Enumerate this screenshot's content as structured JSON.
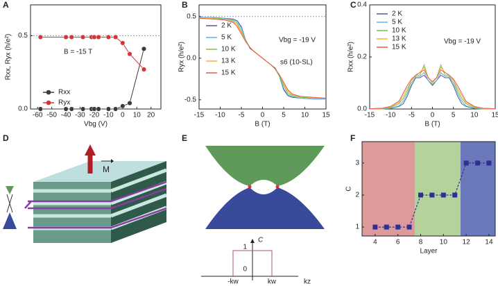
{
  "panel_labels": [
    "A",
    "B",
    "C",
    "D",
    "E",
    "F"
  ],
  "chart_data": [
    {
      "type": "scatter-line",
      "xlabel": "Vbg (V)",
      "ylabel": "Rxx, Ryx (h/e²)",
      "annotations": [
        "B = -15 T"
      ],
      "hline": 0.5,
      "xlim": [
        -65,
        27
      ],
      "ylim": [
        0,
        0.71
      ],
      "xticks": [
        -60,
        -50,
        -40,
        -30,
        -20,
        -10,
        0,
        10,
        20
      ],
      "yticks": [
        {
          "value": 0,
          "label": "0.0"
        },
        {
          "value": 0.5,
          "label": "0.5"
        }
      ],
      "x": [
        -58,
        -40,
        -36,
        -28,
        -22,
        -20,
        -17,
        -10,
        -5,
        0,
        5,
        15
      ],
      "series": [
        {
          "name": "Rxx",
          "color": "#3a3a3a",
          "values": [
            0,
            0,
            0,
            0,
            0,
            0,
            0,
            0,
            0,
            0.02,
            0.04,
            0.41
          ]
        },
        {
          "name": "Ryx",
          "color": "#d8323a",
          "values": [
            0.49,
            0.49,
            0.49,
            0.49,
            0.49,
            0.49,
            0.49,
            0.49,
            0.49,
            0.45,
            0.375,
            0.27
          ]
        }
      ]
    },
    {
      "type": "line",
      "xlabel": "B (T)",
      "ylabel": "Ryx (h/e²)",
      "annotations": [
        "Vbg = -19 V",
        "s6 (10-SL)"
      ],
      "hline": 0.5,
      "xlim": [
        -15,
        15
      ],
      "ylim": [
        -0.61,
        0.64
      ],
      "xticks": [
        -15,
        -10,
        -5,
        0,
        5,
        10,
        15
      ],
      "yticks": [
        -0.5,
        {
          "value": 0,
          "label": "0.0"
        },
        0.5
      ],
      "x": [
        -15,
        -12,
        -9,
        -7,
        -6,
        -5,
        -4,
        -3,
        -2,
        -1,
        0,
        1,
        2,
        3,
        4,
        5,
        6,
        7,
        9,
        12,
        15
      ],
      "series": [
        {
          "name": "2 K",
          "color": "#4a5a9a",
          "values": [
            0.49,
            0.49,
            0.48,
            0.47,
            0.45,
            0.38,
            0.22,
            0.12,
            0.08,
            0.04,
            0,
            -0.04,
            -0.08,
            -0.12,
            -0.22,
            -0.38,
            -0.45,
            -0.47,
            -0.48,
            -0.49,
            -0.49
          ]
        },
        {
          "name": "5 K",
          "color": "#5fb3dc",
          "values": [
            0.49,
            0.49,
            0.48,
            0.46,
            0.44,
            0.36,
            0.22,
            0.13,
            0.08,
            0.04,
            0,
            -0.04,
            -0.08,
            -0.13,
            -0.22,
            -0.36,
            -0.44,
            -0.46,
            -0.48,
            -0.49,
            -0.49
          ]
        },
        {
          "name": "10 K",
          "color": "#7cc04e",
          "values": [
            0.48,
            0.48,
            0.47,
            0.45,
            0.42,
            0.33,
            0.21,
            0.13,
            0.08,
            0.04,
            0,
            -0.04,
            -0.08,
            -0.13,
            -0.21,
            -0.33,
            -0.42,
            -0.45,
            -0.47,
            -0.48,
            -0.48
          ]
        },
        {
          "name": "13 K",
          "color": "#f2b630",
          "values": [
            0.48,
            0.48,
            0.46,
            0.44,
            0.4,
            0.31,
            0.2,
            0.13,
            0.08,
            0.04,
            0,
            -0.04,
            -0.08,
            -0.13,
            -0.2,
            -0.31,
            -0.4,
            -0.44,
            -0.46,
            -0.48,
            -0.48
          ]
        },
        {
          "name": "15 K",
          "color": "#e8554a",
          "values": [
            0.48,
            0.47,
            0.46,
            0.43,
            0.38,
            0.29,
            0.2,
            0.13,
            0.08,
            0.04,
            0,
            -0.04,
            -0.08,
            -0.13,
            -0.2,
            -0.29,
            -0.38,
            -0.43,
            -0.46,
            -0.47,
            -0.48
          ]
        }
      ]
    },
    {
      "type": "line",
      "xlabel": "B (T)",
      "ylabel": "Rxx (h/e²)",
      "annotations": [
        "Vbg = -19 V"
      ],
      "xlim": [
        -15,
        15
      ],
      "ylim": [
        0,
        0.4
      ],
      "xticks": [
        -15,
        -10,
        -5,
        0,
        5,
        10,
        15
      ],
      "yticks": [
        {
          "value": 0,
          "label": "0.0"
        },
        0.2,
        0.4
      ],
      "x": [
        -15,
        -12,
        -10,
        -8,
        -7,
        -6,
        -5,
        -4,
        -3,
        -2,
        -1,
        0,
        1,
        2,
        3,
        4,
        5,
        6,
        7,
        8,
        10,
        12,
        15
      ],
      "series": [
        {
          "name": "2 K",
          "color": "#4a5a9a",
          "values": [
            0,
            0,
            0.002,
            0.01,
            0.02,
            0.05,
            0.09,
            0.12,
            0.12,
            0.13,
            0.11,
            0.09,
            0.11,
            0.13,
            0.12,
            0.12,
            0.09,
            0.05,
            0.02,
            0.01,
            0.002,
            0,
            0
          ]
        },
        {
          "name": "5 K",
          "color": "#5fb3dc",
          "values": [
            0,
            0,
            0.003,
            0.012,
            0.03,
            0.06,
            0.1,
            0.125,
            0.125,
            0.14,
            0.11,
            0.095,
            0.11,
            0.14,
            0.125,
            0.125,
            0.1,
            0.06,
            0.03,
            0.012,
            0.003,
            0,
            0
          ]
        },
        {
          "name": "10 K",
          "color": "#7cc04e",
          "values": [
            0,
            0.001,
            0.005,
            0.02,
            0.04,
            0.07,
            0.11,
            0.13,
            0.13,
            0.17,
            0.12,
            0.1,
            0.12,
            0.17,
            0.13,
            0.13,
            0.11,
            0.07,
            0.04,
            0.02,
            0.005,
            0.001,
            0
          ]
        },
        {
          "name": "13 K",
          "color": "#f2b630",
          "values": [
            0,
            0.002,
            0.008,
            0.025,
            0.05,
            0.08,
            0.11,
            0.13,
            0.14,
            0.16,
            0.12,
            0.1,
            0.12,
            0.16,
            0.14,
            0.13,
            0.11,
            0.08,
            0.05,
            0.025,
            0.008,
            0.002,
            0
          ]
        },
        {
          "name": "15 K",
          "color": "#e8554a",
          "values": [
            0.001,
            0.003,
            0.01,
            0.03,
            0.06,
            0.09,
            0.115,
            0.13,
            0.14,
            0.15,
            0.12,
            0.105,
            0.12,
            0.15,
            0.14,
            0.13,
            0.115,
            0.09,
            0.06,
            0.03,
            0.01,
            0.003,
            0.001
          ]
        }
      ]
    },
    {
      "type": "step-points",
      "xlabel": "Layer",
      "ylabel": "C",
      "xlim": [
        2.85,
        14.55
      ],
      "ylim": [
        0.72,
        3.67
      ],
      "xticks": [
        4,
        6,
        8,
        10,
        12,
        14
      ],
      "yticks": [
        1,
        2,
        3
      ],
      "regions": [
        {
          "from": 2.85,
          "to": 7.5,
          "color": "#dc9a9a"
        },
        {
          "from": 7.5,
          "to": 11.5,
          "color": "#b4d29c"
        },
        {
          "from": 11.5,
          "to": 14.55,
          "color": "#6a78bc"
        }
      ],
      "x": [
        4,
        5,
        6,
        7,
        8,
        9,
        10,
        11,
        12,
        13,
        14
      ],
      "series": [
        {
          "color": "#2e3192",
          "values": [
            1,
            1,
            1,
            1,
            2,
            2,
            2,
            2,
            3,
            3,
            3
          ]
        }
      ]
    }
  ],
  "diagram_d": {
    "label": "M"
  },
  "diagram_e": {
    "axis_label": "C",
    "levels": [
      "1",
      "0"
    ],
    "k_labels": [
      "-kw",
      "kw"
    ],
    "x_label": "kz"
  }
}
